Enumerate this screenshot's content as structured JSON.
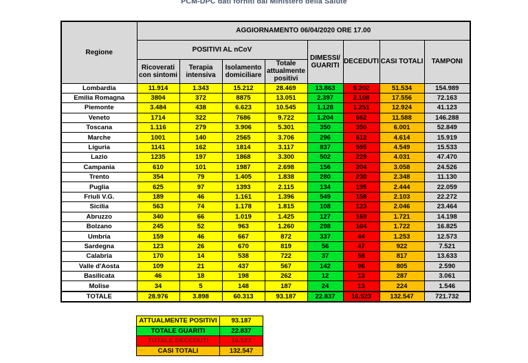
{
  "page": {
    "source_note": "PCM-DPC dati forniti dal Ministero della Salute"
  },
  "table": {
    "header": {
      "update": "AGGIORNAMENTO 06/04/2020 ORE 17.00",
      "regione": "Regione",
      "positivi_group": "POSITIVI AL nCoV",
      "sub": [
        "Ricoverati con sintomi",
        "Terapia intensiva",
        "Isolamento domiciliare",
        "Totale attualmente positivi"
      ],
      "dimessi": "DIMESSI/ GUARITI",
      "deceduti": "DECEDUTI",
      "casi_totali": "CASI TOTALI",
      "tamponi": "TAMPONI"
    }
  },
  "chart_data": {
    "type": "table",
    "title": "AGGIORNAMENTO 06/04/2020 ORE 17.00",
    "columns": [
      "Regione",
      "Ricoverati con sintomi",
      "Terapia intensiva",
      "Isolamento domiciliare",
      "Totale attualmente positivi",
      "DIMESSI/GUARITI",
      "DECEDUTI",
      "CASI TOTALI",
      "TAMPONI"
    ],
    "rows": [
      [
        "Lombardia",
        "11.914",
        "1.343",
        "15.212",
        "28.469",
        "13.863",
        "9.202",
        "51.534",
        "154.989"
      ],
      [
        "Emilia Romagna",
        "3804",
        "372",
        "8875",
        "13.051",
        "2.397",
        "2.108",
        "17.556",
        "72.163"
      ],
      [
        "Piemonte",
        "3.484",
        "438",
        "6.623",
        "10.545",
        "1.128",
        "1.251",
        "12.924",
        "41.123"
      ],
      [
        "Veneto",
        "1714",
        "322",
        "7686",
        "9.722",
        "1.204",
        "662",
        "11.588",
        "146.288"
      ],
      [
        "Toscana",
        "1.116",
        "279",
        "3.906",
        "5.301",
        "350",
        "350",
        "6.001",
        "52.849"
      ],
      [
        "Marche",
        "1001",
        "140",
        "2565",
        "3.706",
        "296",
        "612",
        "4.614",
        "15.919"
      ],
      [
        "Liguria",
        "1141",
        "162",
        "1814",
        "3.117",
        "837",
        "595",
        "4.549",
        "15.533"
      ],
      [
        "Lazio",
        "1235",
        "197",
        "1868",
        "3.300",
        "502",
        "229",
        "4.031",
        "47.470"
      ],
      [
        "Campania",
        "610",
        "101",
        "1987",
        "2.698",
        "156",
        "204",
        "3.058",
        "24.526"
      ],
      [
        "Trento",
        "354",
        "79",
        "1.405",
        "1.838",
        "280",
        "230",
        "2.348",
        "11.130"
      ],
      [
        "Puglia",
        "625",
        "97",
        "1393",
        "2.115",
        "134",
        "195",
        "2.444",
        "22.059"
      ],
      [
        "Friuli V.G.",
        "189",
        "46",
        "1.161",
        "1.396",
        "549",
        "158",
        "2.103",
        "22.272"
      ],
      [
        "Sicilia",
        "563",
        "74",
        "1.178",
        "1.815",
        "108",
        "123",
        "2.046",
        "23.464"
      ],
      [
        "Abruzzo",
        "340",
        "66",
        "1.019",
        "1.425",
        "127",
        "169",
        "1.721",
        "14.198"
      ],
      [
        "Bolzano",
        "245",
        "52",
        "963",
        "1.260",
        "298",
        "164",
        "1.722",
        "16.825"
      ],
      [
        "Umbria",
        "159",
        "46",
        "667",
        "872",
        "337",
        "44",
        "1.253",
        "12.573"
      ],
      [
        "Sardegna",
        "123",
        "26",
        "670",
        "819",
        "56",
        "47",
        "922",
        "7.521"
      ],
      [
        "Calabria",
        "170",
        "14",
        "538",
        "722",
        "37",
        "58",
        "817",
        "13.633"
      ],
      [
        "Valle d'Aosta",
        "109",
        "21",
        "437",
        "567",
        "142",
        "96",
        "805",
        "2.590"
      ],
      [
        "Basilicata",
        "46",
        "18",
        "198",
        "262",
        "12",
        "13",
        "287",
        "3.061"
      ],
      [
        "Molise",
        "34",
        "5",
        "148",
        "187",
        "24",
        "13",
        "224",
        "1.546"
      ],
      [
        "TOTALE",
        "28.976",
        "3.898",
        "60.313",
        "93.187",
        "22.837",
        "16.523",
        "132.547",
        "721.732"
      ]
    ]
  },
  "legend": {
    "items": [
      {
        "name": "attualmente-positivi",
        "label": "ATTUALMENTE POSITIVI",
        "value": "93.187",
        "color": "yellow"
      },
      {
        "name": "totale-guariti",
        "label": "TOTALE GUARITI",
        "value": "22.837",
        "color": "green"
      },
      {
        "name": "totale-deceduti",
        "label": "TOTALE DECEDUTI",
        "value": "16.523",
        "color": "red"
      },
      {
        "name": "casi-totali",
        "label": "CASI TOTALI",
        "value": "132.547",
        "color": "orange"
      }
    ]
  },
  "colors": {
    "positivi_yellow": "#FFFF00",
    "guariti_green": "#00E32C",
    "deceduti_red": "#FF0000",
    "deceduti_text": "#801100",
    "casi_orange": "#FFC000",
    "tamponi_gray": "#D9D9D9",
    "header_gray": "#D9D9D9",
    "note_text": "#44546A"
  }
}
